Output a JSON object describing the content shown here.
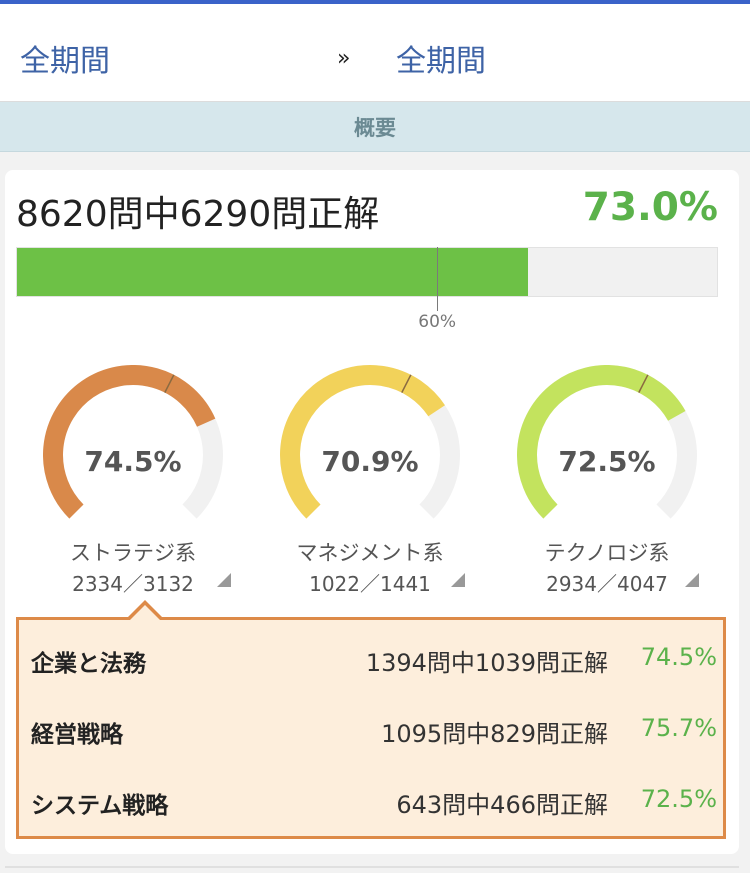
{
  "header": {
    "period_start": "全期間",
    "separator": "»",
    "period_end": "全期間"
  },
  "section": {
    "title": "概要"
  },
  "summary": {
    "text": "8620問中6290問正解",
    "rate": "73.0%",
    "rate_value": 73.0,
    "threshold_label": "60%",
    "threshold_value": 60
  },
  "categories": [
    {
      "label": "ストラテジ系",
      "percent": "74.5%",
      "value": 74.5,
      "count": "2334／3132",
      "color": "#d9894a"
    },
    {
      "label": "マネジメント系",
      "percent": "70.9%",
      "value": 70.9,
      "count": "1022／1441",
      "color": "#f2d25a"
    },
    {
      "label": "テクノロジ系",
      "percent": "72.5%",
      "value": 72.5,
      "count": "2934／4047",
      "color": "#c3e35e"
    }
  ],
  "details": [
    {
      "name": "企業と法務",
      "count": "1394問中1039問正解",
      "rate": "74.5%"
    },
    {
      "name": "経営戦略",
      "count": "1095問中829問正解",
      "rate": "75.7%"
    },
    {
      "name": "システム戦略",
      "count": "643問中466問正解",
      "rate": "72.5%"
    }
  ],
  "colors": {
    "accent_green": "#5bb24b",
    "progress_fill": "#6dc146",
    "panel_border": "#dd8a48",
    "panel_bg": "#fdeedc",
    "link_blue": "#3e63a6"
  }
}
